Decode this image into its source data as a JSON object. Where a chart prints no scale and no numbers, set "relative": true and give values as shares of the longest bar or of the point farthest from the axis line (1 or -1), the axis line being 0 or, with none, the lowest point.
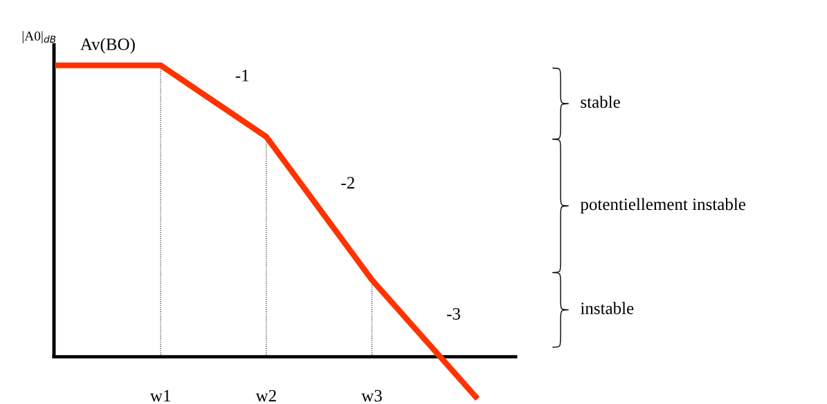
{
  "chart_data": {
    "type": "line",
    "relative": true,
    "ylabel": "|A0|$_{dB}$",
    "categories": [
      null,
      "w1",
      "w2",
      "w3",
      null
    ],
    "series": [
      {
        "name": "Av(BO)",
        "color": "#ff3300",
        "values": [
          1,
          1,
          0.755,
          0.264,
          -0.144
        ]
      }
    ],
    "annotations": [
      "-1",
      "-2",
      "-3",
      "stable",
      "potentiellement instable",
      "instable"
    ],
    "ref_lines": [
      {
        "axis": "x",
        "value": "w1",
        "line_style": "dotted",
        "color": "#000000"
      },
      {
        "axis": "x",
        "value": "w2",
        "line_style": "dotted",
        "color": "#000000"
      },
      {
        "axis": "x",
        "value": "w3",
        "line_style": "dotted",
        "color": "#000000"
      }
    ],
    "legend": false,
    "marker": "none",
    "line_style": "solid"
  }
}
